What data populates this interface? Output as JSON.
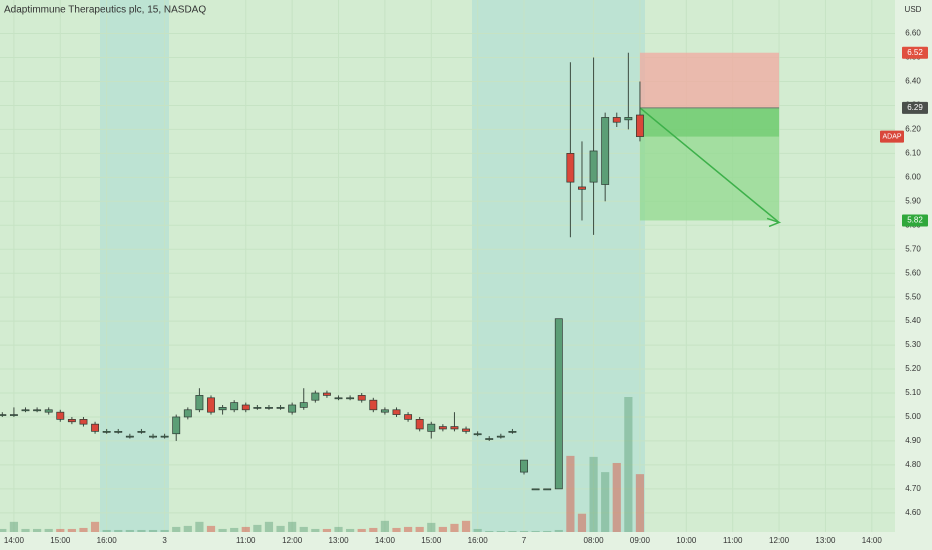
{
  "chart_data": {
    "type": "candlestick",
    "title": "Adaptimmune Therapeutics plc, 15, NASDAQ",
    "y_axis_label": "USD",
    "symbol_label": "ADAP",
    "up_color": "#5c9e76",
    "down_color": "#d9473a",
    "open": [
      5.01,
      5.01,
      5.03,
      5.03,
      5.02,
      5.02,
      4.99,
      4.99,
      4.97,
      4.94,
      4.94,
      4.92,
      4.94,
      4.92,
      4.92,
      4.93,
      5.0,
      5.03,
      5.08,
      5.03,
      5.03,
      5.05,
      5.04,
      5.04,
      5.04,
      5.02,
      5.04,
      5.07,
      5.1,
      5.08,
      5.08,
      5.09,
      5.07,
      5.02,
      5.03,
      5.01,
      4.99,
      4.94,
      4.96,
      4.96,
      4.95,
      4.93,
      4.91,
      4.92,
      4.94,
      4.77,
      4.7,
      4.7,
      4.7,
      6.1,
      5.96,
      5.98,
      5.97,
      6.25,
      6.24,
      6.26
    ],
    "high": [
      5.02,
      5.04,
      5.04,
      5.04,
      5.04,
      5.03,
      5.0,
      5.0,
      4.98,
      4.95,
      4.95,
      4.93,
      4.95,
      4.93,
      4.93,
      5.01,
      5.04,
      5.12,
      5.09,
      5.05,
      5.07,
      5.06,
      5.05,
      5.05,
      5.05,
      5.06,
      5.12,
      5.11,
      5.11,
      5.09,
      5.09,
      5.1,
      5.08,
      5.04,
      5.04,
      5.02,
      5.0,
      4.98,
      4.97,
      5.02,
      4.96,
      4.94,
      4.92,
      4.93,
      4.95,
      4.82,
      4.7,
      4.7,
      5.41,
      6.48,
      6.15,
      6.5,
      6.27,
      6.27,
      6.52,
      6.4
    ],
    "low": [
      5.0,
      5.0,
      5.02,
      5.02,
      5.01,
      4.98,
      4.97,
      4.96,
      4.93,
      4.93,
      4.93,
      4.91,
      4.93,
      4.91,
      4.91,
      4.9,
      4.99,
      5.02,
      5.01,
      5.01,
      5.02,
      5.02,
      5.03,
      5.03,
      5.03,
      5.01,
      5.03,
      5.06,
      5.08,
      5.07,
      5.07,
      5.06,
      5.02,
      5.01,
      5.0,
      4.98,
      4.94,
      4.91,
      4.94,
      4.94,
      4.93,
      4.92,
      4.9,
      4.91,
      4.93,
      4.76,
      4.7,
      4.7,
      4.7,
      5.75,
      5.82,
      5.76,
      5.9,
      6.21,
      6.2,
      6.15
    ],
    "close": [
      5.01,
      5.01,
      5.03,
      5.03,
      5.03,
      4.99,
      4.98,
      4.97,
      4.94,
      4.94,
      4.94,
      4.92,
      4.94,
      4.92,
      4.92,
      5.0,
      5.03,
      5.09,
      5.02,
      5.04,
      5.06,
      5.03,
      5.04,
      5.04,
      5.04,
      5.05,
      5.06,
      5.1,
      5.09,
      5.08,
      5.08,
      5.07,
      5.03,
      5.03,
      5.01,
      4.99,
      4.95,
      4.97,
      4.95,
      4.95,
      4.94,
      4.93,
      4.91,
      4.92,
      4.94,
      4.82,
      4.7,
      4.7,
      5.41,
      5.98,
      5.95,
      6.11,
      6.25,
      6.23,
      6.25,
      6.17
    ],
    "volume": [
      3,
      10,
      3,
      3,
      3,
      3,
      3,
      4,
      10,
      2,
      2,
      2,
      2,
      2,
      2,
      5,
      6,
      10,
      6,
      3,
      4,
      5,
      7,
      10,
      6,
      10,
      5,
      3,
      3,
      5,
      3,
      3,
      4,
      11,
      4,
      5,
      5,
      9,
      5,
      8,
      11,
      3,
      1,
      1,
      1,
      1,
      1,
      1,
      2,
      75,
      18,
      74,
      59,
      68,
      133,
      57
    ],
    "xlim": [
      -0.2,
      77
    ],
    "ylim": [
      4.52,
      6.74
    ],
    "yticks": [
      {
        "value": 4.6,
        "label": "4.60"
      },
      {
        "value": 4.7,
        "label": "4.70"
      },
      {
        "value": 4.8,
        "label": "4.80"
      },
      {
        "value": 4.9,
        "label": "4.90"
      },
      {
        "value": 5.0,
        "label": "5.00"
      },
      {
        "value": 5.1,
        "label": "5.10"
      },
      {
        "value": 5.2,
        "label": "5.20"
      },
      {
        "value": 5.3,
        "label": "5.30"
      },
      {
        "value": 5.4,
        "label": "5.40"
      },
      {
        "value": 5.5,
        "label": "5.50"
      },
      {
        "value": 5.6,
        "label": "5.60"
      },
      {
        "value": 5.7,
        "label": "5.70"
      },
      {
        "value": 5.8,
        "label": "5.80"
      },
      {
        "value": 5.9,
        "label": "5.90"
      },
      {
        "value": 6.0,
        "label": "6.00"
      },
      {
        "value": 6.1,
        "label": "6.10"
      },
      {
        "value": 6.2,
        "label": "6.20"
      },
      {
        "value": 6.3,
        "label": "6.30"
      },
      {
        "value": 6.4,
        "label": "6.40"
      },
      {
        "value": 6.5,
        "label": "6.50"
      },
      {
        "value": 6.6,
        "label": "6.60"
      }
    ],
    "xticks": [
      {
        "value": 1,
        "label": "14:00"
      },
      {
        "value": 5,
        "label": "15:00"
      },
      {
        "value": 9,
        "label": "16:00"
      },
      {
        "value": 14,
        "label": "3"
      },
      {
        "value": 21,
        "label": "11:00"
      },
      {
        "value": 25,
        "label": "12:00"
      },
      {
        "value": 29,
        "label": "13:00"
      },
      {
        "value": 33,
        "label": "14:00"
      },
      {
        "value": 37,
        "label": "15:00"
      },
      {
        "value": 41,
        "label": "16:00"
      },
      {
        "value": 45,
        "label": "7"
      },
      {
        "value": 51,
        "label": "08:00"
      },
      {
        "value": 55,
        "label": "09:00"
      },
      {
        "value": 59,
        "label": "10:00"
      },
      {
        "value": 63,
        "label": "11:00"
      },
      {
        "value": 67,
        "label": "12:00"
      },
      {
        "value": 71,
        "label": "13:00"
      },
      {
        "value": 75,
        "label": "14:00"
      }
    ],
    "position": {
      "entry": 6.29,
      "stop": 6.52,
      "target": 5.82,
      "start": 55,
      "end": 67
    }
  }
}
